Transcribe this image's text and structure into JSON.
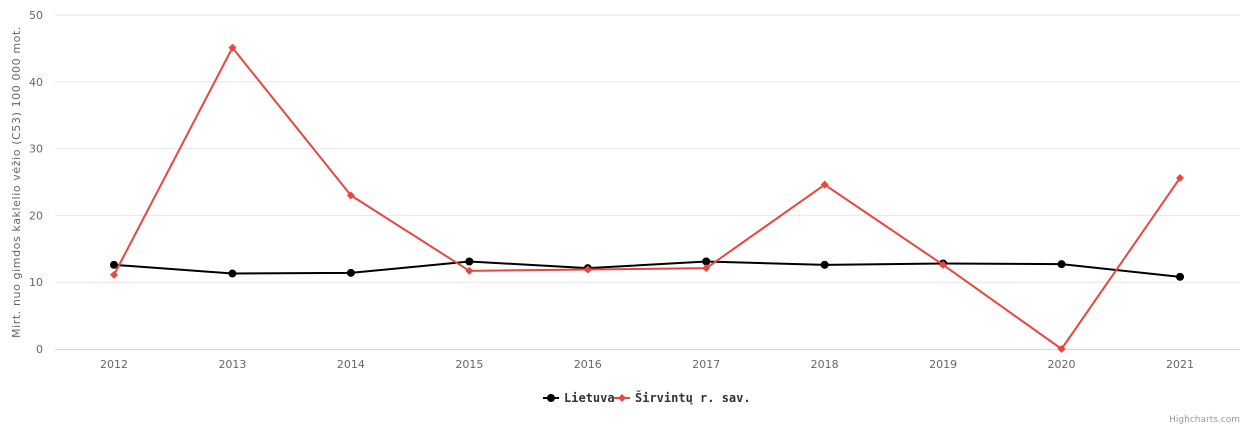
{
  "chart_data": {
    "type": "line",
    "title": "",
    "xlabel": "",
    "ylabel": "Mirt. nuo gimdos kaklelio vėžio (C53) 100 000 mot.",
    "categories": [
      "2012",
      "2013",
      "2014",
      "2015",
      "2016",
      "2017",
      "2018",
      "2019",
      "2020",
      "2021"
    ],
    "ylim": [
      0,
      50
    ],
    "yticks": [
      0,
      10,
      20,
      30,
      40,
      50
    ],
    "grid": true,
    "legend_position": "bottom-center",
    "series": [
      {
        "name": "Lietuva",
        "color": "#000000",
        "marker": "circle",
        "values": [
          12.6,
          11.3,
          11.4,
          13.1,
          12.1,
          13.1,
          12.6,
          12.8,
          12.7,
          10.8
        ]
      },
      {
        "name": "Širvintų r. sav.",
        "color": "#e8473e",
        "marker": "diamond",
        "values": [
          11.1,
          45.1,
          23.0,
          11.7,
          11.9,
          12.1,
          24.6,
          12.6,
          0,
          25.6
        ]
      }
    ]
  },
  "credits": "Highcharts.com"
}
